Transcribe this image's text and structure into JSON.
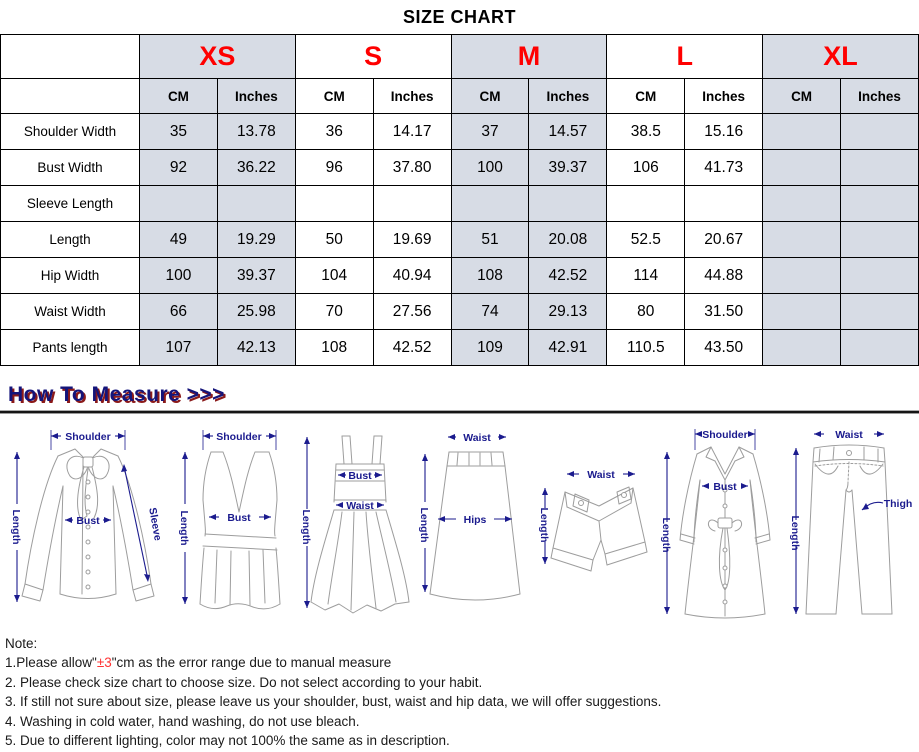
{
  "title": "SIZE CHART",
  "colors": {
    "header_gray": "#d7dce5",
    "size_red": "#ff0000",
    "label_navy": "#1b1b8e",
    "heading_navy": "#14147a",
    "heading_shadow_red": "#8b1a1a"
  },
  "table": {
    "sizes": [
      "XS",
      "S",
      "M",
      "L",
      "XL"
    ],
    "unit_headers": [
      "CM",
      "Inches"
    ],
    "rows": [
      {
        "label": "Shoulder Width",
        "values": [
          "35",
          "13.78",
          "36",
          "14.17",
          "37",
          "14.57",
          "38.5",
          "15.16",
          "",
          ""
        ]
      },
      {
        "label": "Bust Width",
        "values": [
          "92",
          "36.22",
          "96",
          "37.80",
          "100",
          "39.37",
          "106",
          "41.73",
          "",
          ""
        ]
      },
      {
        "label": "Sleeve Length",
        "values": [
          "",
          "",
          "",
          "",
          "",
          "",
          "",
          "",
          "",
          ""
        ]
      },
      {
        "label": "Length",
        "values": [
          "49",
          "19.29",
          "50",
          "19.69",
          "51",
          "20.08",
          "52.5",
          "20.67",
          "",
          ""
        ]
      },
      {
        "label": "Hip Width",
        "values": [
          "100",
          "39.37",
          "104",
          "40.94",
          "108",
          "42.52",
          "114",
          "44.88",
          "",
          ""
        ]
      },
      {
        "label": "Waist Width",
        "values": [
          "66",
          "25.98",
          "70",
          "27.56",
          "74",
          "29.13",
          "80",
          "31.50",
          "",
          ""
        ]
      },
      {
        "label": "Pants length",
        "values": [
          "107",
          "42.13",
          "108",
          "42.52",
          "109",
          "42.91",
          "110.5",
          "43.50",
          "",
          ""
        ]
      }
    ]
  },
  "measure": {
    "heading": "How To Measure >>>",
    "figures": [
      {
        "name": "blouse",
        "labels": {
          "shoulder": "Shoulder",
          "length": "Length",
          "bust": "Bust",
          "sleeve": "Sleeve"
        }
      },
      {
        "name": "tank",
        "labels": {
          "shoulder": "Shoulder",
          "length": "Length",
          "bust": "Bust"
        }
      },
      {
        "name": "dress",
        "labels": {
          "bust": "Bust",
          "waist": "Waist",
          "length": "Length"
        }
      },
      {
        "name": "skirt",
        "labels": {
          "waist": "Waist",
          "hips": "Hips",
          "length": "Length"
        }
      },
      {
        "name": "shorts",
        "labels": {
          "waist": "Waist",
          "length": "Length"
        }
      },
      {
        "name": "coat",
        "labels": {
          "shoulder": "Shoulder",
          "bust": "Bust",
          "length": "Length"
        }
      },
      {
        "name": "pants",
        "labels": {
          "waist": "Waist",
          "thigh": "Thigh",
          "length": "Length"
        }
      }
    ]
  },
  "notes": {
    "title": "Note:",
    "line1_pre": "1.Please allow\"",
    "line1_red": "±3",
    "line1_post": "\"cm as the error range due to manual measure",
    "line2": "2. Please check size chart to choose size. Do not select according to your habit.",
    "line3": "3. If still not sure about size, please leave us your shoulder, bust, waist and hip data, we will offer suggestions.",
    "line4": "4. Washing in cold water, hand washing, do not use bleach.",
    "line5": "5. Due to different lighting, color may not 100% the same as in description."
  }
}
